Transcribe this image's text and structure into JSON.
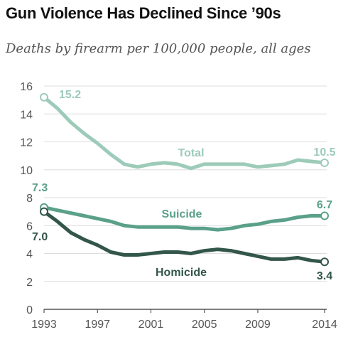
{
  "title": "Gun Violence Has Declined Since ’90s",
  "subtitle": "Deaths by firearm per 100,000 people, all ages",
  "chart_data": {
    "type": "line",
    "x": [
      1993,
      1994,
      1995,
      1996,
      1997,
      1998,
      1999,
      2000,
      2001,
      2002,
      2003,
      2004,
      2005,
      2006,
      2007,
      2008,
      2009,
      2010,
      2011,
      2012,
      2013,
      2014
    ],
    "xticks": [
      1993,
      1997,
      2001,
      2005,
      2009,
      2014
    ],
    "yticks": [
      0,
      2,
      4,
      6,
      8,
      10,
      12,
      14,
      16
    ],
    "ylim": [
      0,
      16
    ],
    "xlim": [
      1993,
      2014
    ],
    "grid": true,
    "series": [
      {
        "name": "Total",
        "color": "#9dcbb9",
        "values": [
          15.2,
          14.4,
          13.4,
          12.6,
          11.9,
          11.1,
          10.4,
          10.2,
          10.4,
          10.5,
          10.4,
          10.1,
          10.4,
          10.4,
          10.4,
          10.4,
          10.2,
          10.3,
          10.4,
          10.7,
          10.6,
          10.5
        ],
        "start_label": "15.2",
        "end_label": "10.5"
      },
      {
        "name": "Suicide",
        "color": "#5aa08a",
        "values": [
          7.3,
          7.1,
          6.9,
          6.7,
          6.5,
          6.3,
          6.0,
          5.9,
          5.9,
          5.9,
          5.9,
          5.8,
          5.8,
          5.7,
          5.8,
          6.0,
          6.1,
          6.3,
          6.4,
          6.6,
          6.7,
          6.7
        ],
        "start_label": "7.3",
        "end_label": "6.7"
      },
      {
        "name": "Homicide",
        "color": "#33564a",
        "values": [
          7.0,
          6.3,
          5.5,
          5.0,
          4.6,
          4.1,
          3.9,
          3.9,
          4.0,
          4.1,
          4.1,
          4.0,
          4.2,
          4.3,
          4.2,
          4.0,
          3.8,
          3.6,
          3.6,
          3.7,
          3.5,
          3.4
        ],
        "start_label": "7.0",
        "end_label": "3.4"
      }
    ]
  }
}
